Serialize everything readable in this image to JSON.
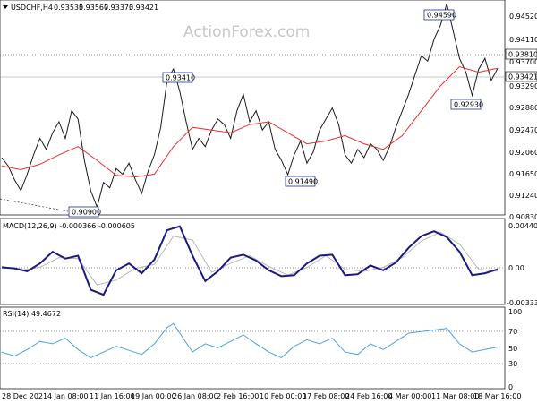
{
  "chart_data": {
    "type": "line",
    "symbol_title": "USDCHF,H4",
    "ohlc": [
      "0.93535",
      "0.93567",
      "0.93373",
      "0.93421"
    ],
    "watermark": "ActionForex.com",
    "x_tick_labels": [
      "28 Dec 2021",
      "4 Jan 08:00",
      "11 Jan 16:00",
      "19 Jan 00:00",
      "26 Jan 08:00",
      "2 Feb 16:00",
      "10 Feb 00:00",
      "17 Feb 08:00",
      "24 Feb 16:00",
      "4 Mar 00:00",
      "11 Mar 08:00",
      "18 Mar 16:00"
    ],
    "price_panel": {
      "ylim": [
        0.9076,
        0.9466
      ],
      "y_ticks": [
        "0.94520",
        "0.94110",
        "0.93700",
        "0.93290",
        "0.92880",
        "0.92470",
        "0.92060",
        "0.91650",
        "0.91240",
        "0.90830"
      ],
      "current_price": "0.93421",
      "resistance_level": "0.93810",
      "annotations": [
        {
          "text": "0.94590",
          "price": 0.9459
        },
        {
          "text": "0.93410",
          "price": 0.9341
        },
        {
          "text": "0.92930",
          "price": 0.9293
        },
        {
          "text": "0.91490",
          "price": 0.9149
        },
        {
          "text": "0.90900",
          "price": 0.909
        }
      ],
      "price_path": [
        [
          0.0,
          0.918
        ],
        [
          1.0,
          0.9165
        ],
        [
          2.0,
          0.914
        ],
        [
          3.0,
          0.912
        ],
        [
          4.0,
          0.915
        ],
        [
          5.0,
          0.9185
        ],
        [
          6.0,
          0.9215
        ],
        [
          7.0,
          0.9195
        ],
        [
          8.0,
          0.9225
        ],
        [
          9.0,
          0.9245
        ],
        [
          10.0,
          0.9215
        ],
        [
          11.0,
          0.9265
        ],
        [
          12.0,
          0.925
        ],
        [
          13.0,
          0.9175
        ],
        [
          14.0,
          0.912
        ],
        [
          15.0,
          0.909
        ],
        [
          16.0,
          0.9135
        ],
        [
          17.0,
          0.9125
        ],
        [
          18.0,
          0.916
        ],
        [
          19.0,
          0.915
        ],
        [
          20.0,
          0.917
        ],
        [
          21.0,
          0.914
        ],
        [
          22.0,
          0.9115
        ],
        [
          23.0,
          0.9155
        ],
        [
          24.0,
          0.9185
        ],
        [
          25.0,
          0.9235
        ],
        [
          26.0,
          0.932
        ],
        [
          27.0,
          0.9341
        ],
        [
          28.0,
          0.93
        ],
        [
          29.0,
          0.9245
        ],
        [
          30.0,
          0.9195
        ],
        [
          31.0,
          0.9215
        ],
        [
          32.0,
          0.92
        ],
        [
          33.0,
          0.923
        ],
        [
          34.0,
          0.925
        ],
        [
          35.0,
          0.924
        ],
        [
          36.0,
          0.9215
        ],
        [
          37.0,
          0.9265
        ],
        [
          38.0,
          0.9295
        ],
        [
          39.0,
          0.9245
        ],
        [
          40.0,
          0.9265
        ],
        [
          41.0,
          0.923
        ],
        [
          42.0,
          0.9245
        ],
        [
          43.0,
          0.9195
        ],
        [
          44.0,
          0.9175
        ],
        [
          45.0,
          0.9149
        ],
        [
          46.0,
          0.9185
        ],
        [
          47.0,
          0.921
        ],
        [
          48.0,
          0.917
        ],
        [
          49.0,
          0.919
        ],
        [
          50.0,
          0.923
        ],
        [
          51.0,
          0.925
        ],
        [
          52.0,
          0.927
        ],
        [
          53.0,
          0.924
        ],
        [
          54.0,
          0.9185
        ],
        [
          55.0,
          0.917
        ],
        [
          56.0,
          0.9195
        ],
        [
          57.0,
          0.918
        ],
        [
          58.0,
          0.9205
        ],
        [
          59.0,
          0.9195
        ],
        [
          60.0,
          0.9175
        ],
        [
          61.0,
          0.92
        ],
        [
          62.0,
          0.9235
        ],
        [
          63.0,
          0.9265
        ],
        [
          64.0,
          0.9295
        ],
        [
          65.0,
          0.933
        ],
        [
          66.0,
          0.9365
        ],
        [
          67.0,
          0.9355
        ],
        [
          68.0,
          0.9395
        ],
        [
          69.0,
          0.942
        ],
        [
          70.0,
          0.9459
        ],
        [
          71.0,
          0.941
        ],
        [
          72.0,
          0.936
        ],
        [
          73.0,
          0.9335
        ],
        [
          74.0,
          0.9293
        ],
        [
          75.0,
          0.934
        ],
        [
          76.0,
          0.936
        ],
        [
          77.0,
          0.932
        ],
        [
          78.0,
          0.9342
        ]
      ],
      "ma_path": [
        [
          0.0,
          0.9165
        ],
        [
          3.0,
          0.9158
        ],
        [
          6.0,
          0.9168
        ],
        [
          9.0,
          0.9185
        ],
        [
          12.0,
          0.92
        ],
        [
          15.0,
          0.9175
        ],
        [
          18.0,
          0.9148
        ],
        [
          21.0,
          0.9145
        ],
        [
          24.0,
          0.915
        ],
        [
          27.0,
          0.92
        ],
        [
          30.0,
          0.9235
        ],
        [
          33.0,
          0.923
        ],
        [
          36.0,
          0.9225
        ],
        [
          39.0,
          0.924
        ],
        [
          42.0,
          0.9245
        ],
        [
          45.0,
          0.9225
        ],
        [
          48.0,
          0.9205
        ],
        [
          51.0,
          0.921
        ],
        [
          54.0,
          0.922
        ],
        [
          57.0,
          0.9205
        ],
        [
          60.0,
          0.9195
        ],
        [
          63.0,
          0.922
        ],
        [
          66.0,
          0.9265
        ],
        [
          69.0,
          0.931
        ],
        [
          72.0,
          0.9345
        ],
        [
          75.0,
          0.9335
        ],
        [
          78.0,
          0.9342
        ]
      ]
    },
    "macd_panel": {
      "title": "MACD(12,26,9) -0.000366 -0.000605",
      "ylim": [
        -0.004,
        0.0048
      ],
      "y_ticks": [
        "0.004403",
        "0.00",
        "-0.003338"
      ],
      "macd_path": [
        [
          0.0,
          -0.0002
        ],
        [
          2.0,
          -0.0003
        ],
        [
          4.0,
          -0.0006
        ],
        [
          6.0,
          0.0002
        ],
        [
          8.0,
          0.0014
        ],
        [
          10.0,
          0.0007
        ],
        [
          12.0,
          0.001
        ],
        [
          14.0,
          -0.0025
        ],
        [
          16.0,
          -0.003
        ],
        [
          18.0,
          -0.0005
        ],
        [
          20.0,
          0.0002
        ],
        [
          22.0,
          -0.0008
        ],
        [
          24.0,
          0.0006
        ],
        [
          26.0,
          0.0036
        ],
        [
          28.0,
          0.004
        ],
        [
          30.0,
          0.001
        ],
        [
          32.0,
          -0.0016
        ],
        [
          34.0,
          -0.0006
        ],
        [
          36.0,
          0.0008
        ],
        [
          38.0,
          0.0011
        ],
        [
          40.0,
          0.0005
        ],
        [
          42.0,
          -0.0005
        ],
        [
          44.0,
          -0.0011
        ],
        [
          46.0,
          -0.001
        ],
        [
          48.0,
          0.0002
        ],
        [
          50.0,
          0.001
        ],
        [
          52.0,
          0.0011
        ],
        [
          54.0,
          -0.001
        ],
        [
          56.0,
          -0.0009
        ],
        [
          58.0,
          0.0
        ],
        [
          60.0,
          -0.0005
        ],
        [
          62.0,
          0.0003
        ],
        [
          64.0,
          0.0018
        ],
        [
          66.0,
          0.003
        ],
        [
          68.0,
          0.0035
        ],
        [
          70.0,
          0.0029
        ],
        [
          72.0,
          0.0014
        ],
        [
          74.0,
          -0.001
        ],
        [
          76.0,
          -0.0008
        ],
        [
          78.0,
          -0.0004
        ]
      ],
      "signal_path": [
        [
          0.0,
          -0.0001
        ],
        [
          3.0,
          -0.0005
        ],
        [
          6.0,
          -0.0002
        ],
        [
          9.0,
          0.0008
        ],
        [
          12.0,
          0.0007
        ],
        [
          15.0,
          -0.002
        ],
        [
          18.0,
          -0.0015
        ],
        [
          21.0,
          -0.0003
        ],
        [
          24.0,
          0.0001
        ],
        [
          27.0,
          0.003
        ],
        [
          30.0,
          0.0026
        ],
        [
          33.0,
          -0.0007
        ],
        [
          36.0,
          0.0002
        ],
        [
          39.0,
          0.001
        ],
        [
          42.0,
          -0.0001
        ],
        [
          45.0,
          -0.001
        ],
        [
          48.0,
          -0.0002
        ],
        [
          51.0,
          0.001
        ],
        [
          54.0,
          -0.0004
        ],
        [
          57.0,
          -0.0006
        ],
        [
          60.0,
          -0.0002
        ],
        [
          63.0,
          0.0008
        ],
        [
          66.0,
          0.0025
        ],
        [
          69.0,
          0.0034
        ],
        [
          72.0,
          0.0022
        ],
        [
          75.0,
          -0.0004
        ],
        [
          78.0,
          -0.0006
        ]
      ]
    },
    "rsi_panel": {
      "title": "RSI(14) 49.4672",
      "ylim": [
        0,
        100
      ],
      "y_ticks": [
        "100",
        "70",
        "50",
        "30",
        "0"
      ],
      "levels": [
        70,
        30
      ],
      "rsi_path": [
        [
          0.0,
          45
        ],
        [
          2.0,
          40
        ],
        [
          4.0,
          48
        ],
        [
          6.0,
          58
        ],
        [
          8.0,
          55
        ],
        [
          10.0,
          62
        ],
        [
          12.0,
          48
        ],
        [
          14.0,
          38
        ],
        [
          16.0,
          45
        ],
        [
          18.0,
          52
        ],
        [
          20.0,
          47
        ],
        [
          22.0,
          42
        ],
        [
          24.0,
          55
        ],
        [
          26.0,
          75
        ],
        [
          27.0,
          80
        ],
        [
          28.0,
          68
        ],
        [
          30.0,
          45
        ],
        [
          32.0,
          55
        ],
        [
          34.0,
          50
        ],
        [
          36.0,
          58
        ],
        [
          38.0,
          66
        ],
        [
          40.0,
          55
        ],
        [
          42.0,
          45
        ],
        [
          44.0,
          38
        ],
        [
          46.0,
          52
        ],
        [
          48.0,
          60
        ],
        [
          50.0,
          55
        ],
        [
          52.0,
          62
        ],
        [
          54.0,
          45
        ],
        [
          56.0,
          42
        ],
        [
          58.0,
          55
        ],
        [
          60.0,
          48
        ],
        [
          62.0,
          58
        ],
        [
          64.0,
          68
        ],
        [
          66.0,
          70
        ],
        [
          68.0,
          72
        ],
        [
          70.0,
          74
        ],
        [
          72.0,
          55
        ],
        [
          74.0,
          45
        ],
        [
          76.0,
          48
        ],
        [
          78.0,
          51
        ]
      ]
    },
    "colors": {
      "price_line": "#1a1a1a",
      "ma_line": "#e8312f",
      "macd_line": "#1a1a80",
      "signal_line": "#b8b8b8",
      "rsi_line": "#4aa3e8",
      "grid_dotted": "#707070",
      "box_border": "#1f2f8f"
    }
  }
}
